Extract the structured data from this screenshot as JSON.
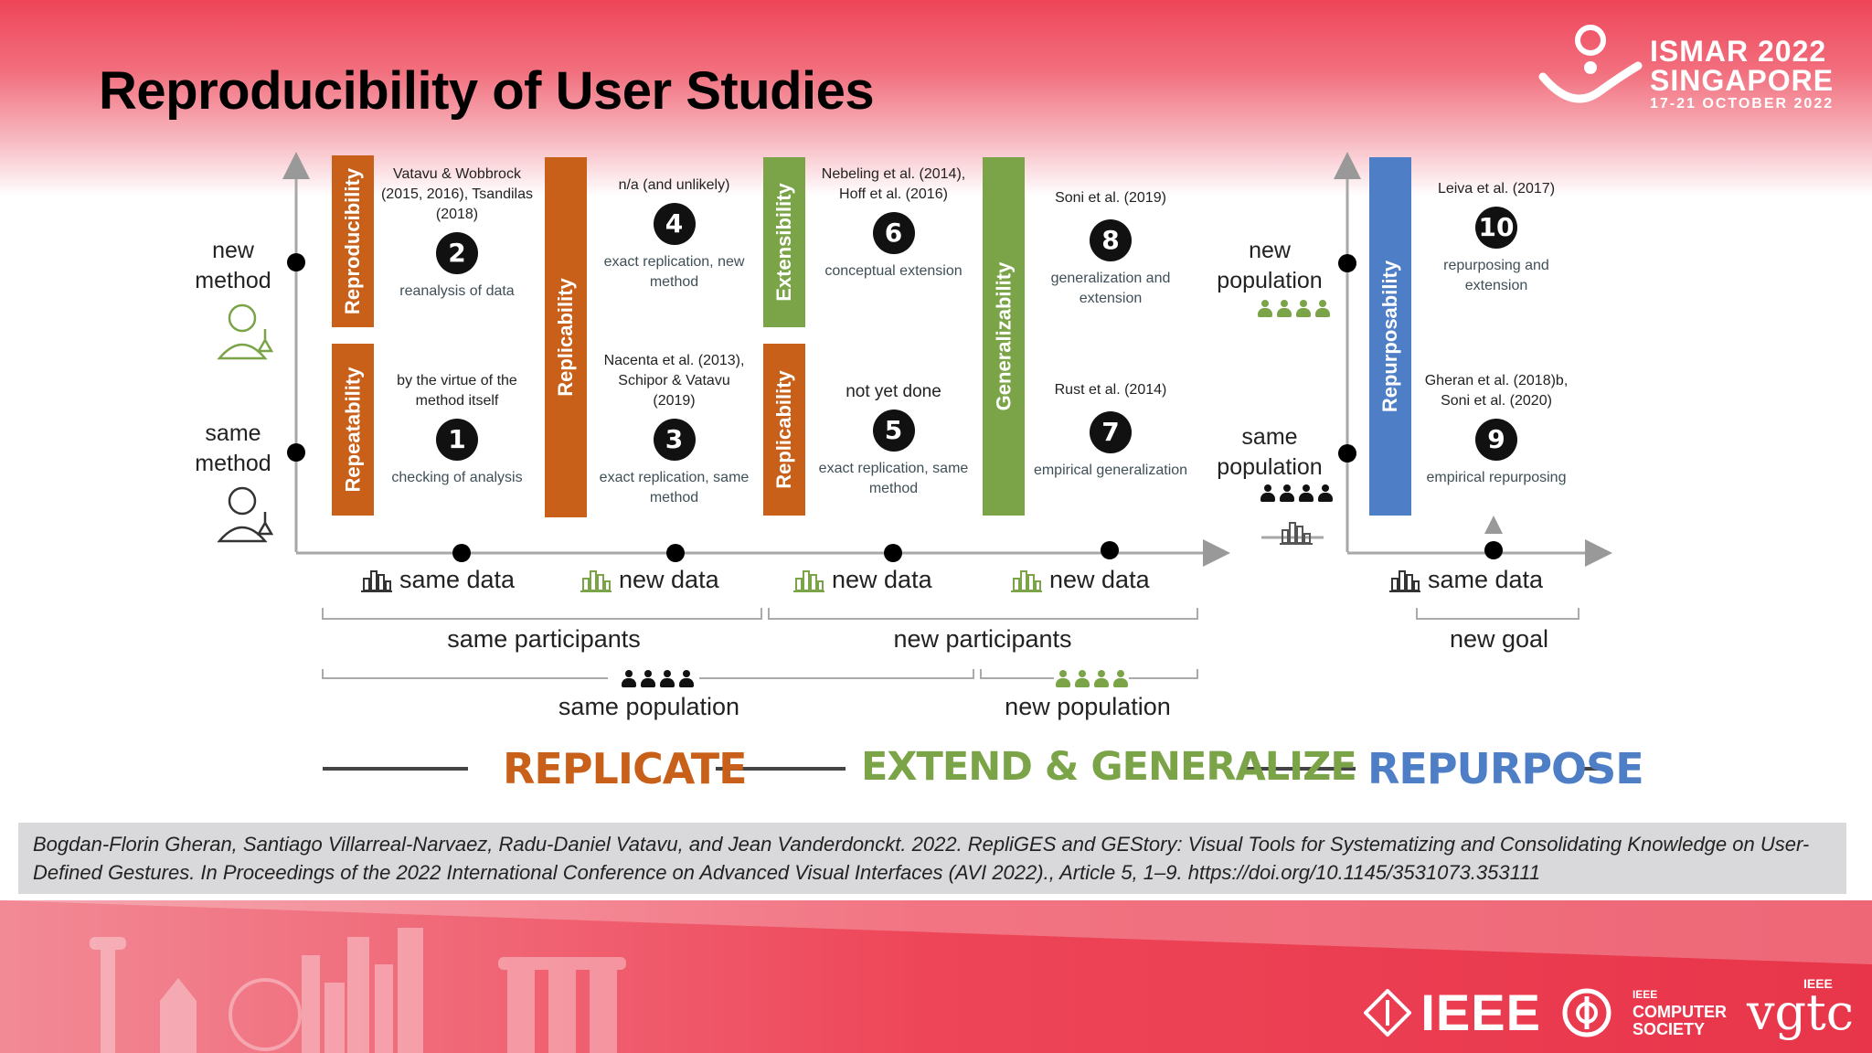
{
  "title": "Reproducibility of User Studies",
  "logo": {
    "line1": "ISMAR 2022",
    "line2": "SINGAPORE",
    "line3": "17-21 OCTOBER 2022"
  },
  "y_axis_left": {
    "top": "new method",
    "bottom": "same method"
  },
  "y_axis_right": {
    "top": "new population",
    "bottom": "same population"
  },
  "bars": {
    "reproducibility": "Reproducibility",
    "repeatability": "Repeatability",
    "replicability_tall": "Replicability",
    "extensibility": "Extensibility",
    "replicability_short": "Replicability",
    "generalizability": "Generalizability",
    "repurposability": "Repurposability"
  },
  "cells": {
    "c2": {
      "cite": "Vatavu & Wobbrock (2015, 2016), Tsandilas (2018)",
      "num": "2",
      "desc": "reanalysis of data"
    },
    "c1": {
      "cite": "by the virtue of the method itself",
      "num": "1",
      "desc": "checking of analysis"
    },
    "c4": {
      "cite": "n/a (and unlikely)",
      "num": "4",
      "desc": "exact replication, new method"
    },
    "c3": {
      "cite": "Nacenta et al. (2013), Schipor & Vatavu (2019)",
      "num": "3",
      "desc": "exact replication, same method"
    },
    "c6": {
      "cite": "Nebeling et al. (2014), Hoff et al. (2016)",
      "num": "6",
      "desc": "conceptual extension"
    },
    "c5": {
      "cite": "not yet done",
      "num": "5",
      "desc": "exact replication, same method"
    },
    "c8": {
      "cite": "Soni et al. (2019)",
      "num": "8",
      "desc": "generalization and extension"
    },
    "c7": {
      "cite": "Rust et al. (2014)",
      "num": "7",
      "desc": "empirical generalization"
    },
    "c10": {
      "cite": "Leiva et al. (2017)",
      "num": "10",
      "desc": "repurposing and extension"
    },
    "c9": {
      "cite": "Gheran et al. (2018)b, Soni et al. (2020)",
      "num": "9",
      "desc": "empirical repurposing"
    }
  },
  "x_labels": {
    "d1": "same data",
    "d2": "new data",
    "d3": "new data",
    "d4": "new data",
    "d5": "same data"
  },
  "groups": {
    "same_participants": "same participants",
    "new_participants": "new participants",
    "new_goal": "new goal",
    "same_population": "same population",
    "new_population": "new population"
  },
  "phases": {
    "replicate": "REPLICATE",
    "extend": "EXTEND & GENERALIZE",
    "repurpose": "REPURPOSE"
  },
  "colors": {
    "orange": "#c9601a",
    "green": "#7aa447",
    "blue": "#4d7ec6",
    "banner": "#ee4558"
  },
  "reference": "Bogdan-Florin Gheran, Santiago Villarreal-Narvaez, Radu-Daniel Vatavu, and Jean Vanderdonckt. 2022. RepliGES and GEStory: Visual Tools for Systematizing and Consolidating Knowledge on User-Defined Gestures. In Proceedings of the 2022 International Conference on Advanced Visual Interfaces (AVI 2022)., Article 5, 1–9. https://doi.org/10.1145/3531073.353111",
  "footer": {
    "ieee": "IEEE",
    "cs1": "IEEE",
    "cs2": "COMPUTER",
    "cs3": "SOCIETY",
    "vgtc": "vgtc",
    "vgtc_top": "IEEE"
  }
}
